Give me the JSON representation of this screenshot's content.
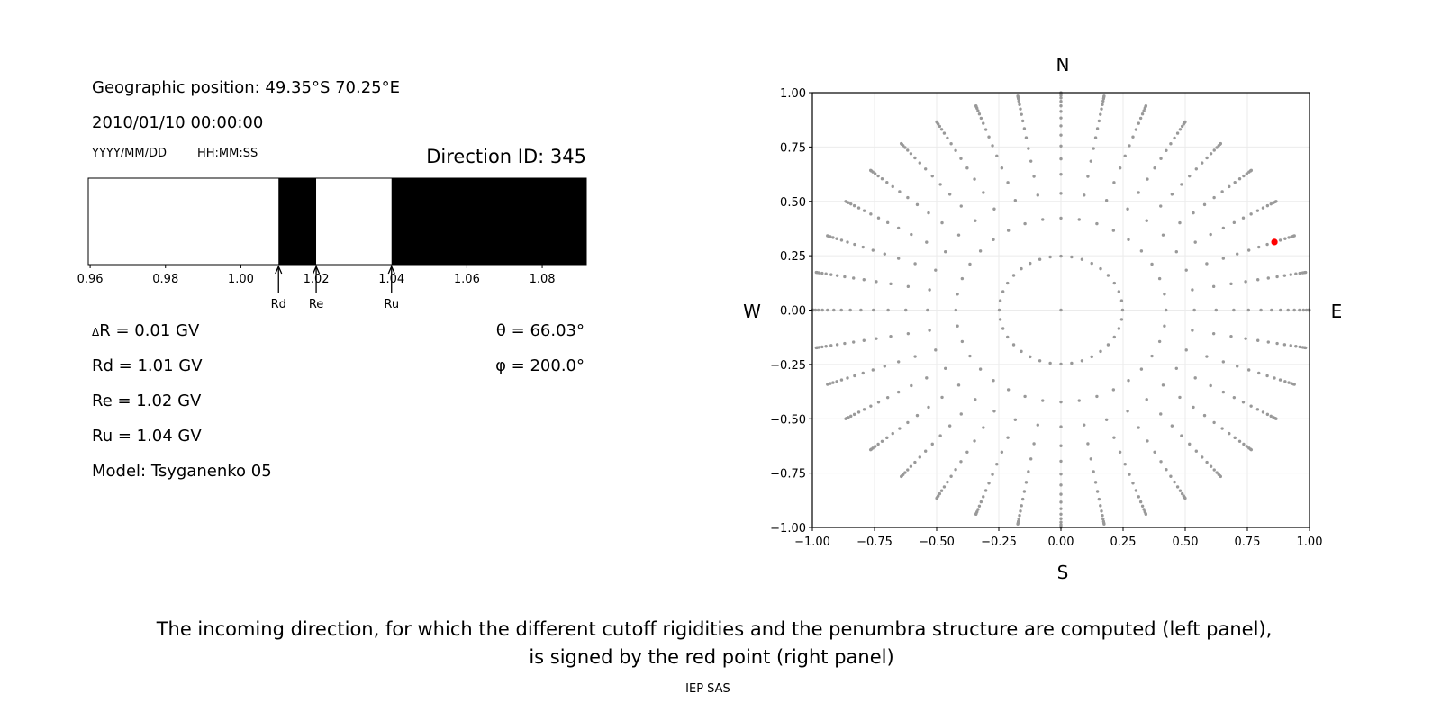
{
  "info": {
    "geo_position": "Geographic position: 49.35°S 70.25°E",
    "datetime": "2010/01/10 00:00:00",
    "date_format": "YYYY/MM/DD",
    "time_format": "HH:MM:SS",
    "direction_id": "Direction ID: 345",
    "delta_r_symbol": "Δ",
    "delta_r": "R = 0.01 GV",
    "rd": "Rd = 1.01 GV",
    "re": "Re = 1.02 GV",
    "ru": "Ru = 1.04 GV",
    "model": "Model: Tsyganenko 05",
    "theta": "θ = 66.03°",
    "phi": "φ = 200.0°"
  },
  "caption": {
    "line1": "The incoming direction, for which the different cutoff rigidities and the penumbra structure are computed (left panel),",
    "line2": "is signed by the red point (right panel)",
    "credit": "IEP SAS"
  },
  "chart_data": [
    {
      "type": "bar",
      "subtype": "penumbra-strip",
      "xlim": [
        0.9595,
        1.0917
      ],
      "xticks": [
        "0.96",
        "0.98",
        "1.00",
        "1.02",
        "1.04",
        "1.06",
        "1.08"
      ],
      "xtick_values": [
        0.96,
        0.98,
        1.0,
        1.02,
        1.04,
        1.06,
        1.08
      ],
      "segments": [
        {
          "from": 0.9595,
          "to": 1.01,
          "state": "forbidden",
          "color": "#ffffff"
        },
        {
          "from": 1.01,
          "to": 1.02,
          "state": "allowed",
          "color": "#000000"
        },
        {
          "from": 1.02,
          "to": 1.04,
          "state": "forbidden",
          "color": "#ffffff"
        },
        {
          "from": 1.04,
          "to": 1.0917,
          "state": "allowed",
          "color": "#000000"
        }
      ],
      "markers": [
        {
          "label": "Rd",
          "value": 1.01
        },
        {
          "label": "Re",
          "value": 1.02
        },
        {
          "label": "Ru",
          "value": 1.04
        }
      ]
    },
    {
      "type": "scatter",
      "xlim": [
        -1,
        1
      ],
      "ylim": [
        -1,
        1
      ],
      "grid": true,
      "xticks": [
        "−1.00",
        "−0.75",
        "−0.50",
        "−0.25",
        "0.00",
        "0.25",
        "0.50",
        "0.75",
        "1.00"
      ],
      "yticks": [
        "−1.00",
        "−0.75",
        "−0.50",
        "−0.25",
        "0.00",
        "0.25",
        "0.50",
        "0.75",
        "1.00"
      ],
      "tick_values": [
        -1,
        -0.75,
        -0.5,
        -0.25,
        0,
        0.25,
        0.5,
        0.75,
        1
      ],
      "compass": {
        "north": "N",
        "south": "S",
        "west": "W",
        "east": "E"
      },
      "directions_grid": {
        "azimuth_step_deg": 10,
        "zenith_rings": 16,
        "zenith_cos_rule": "cos(theta_k) = 1 - (k + 0.5) / 16",
        "center_point": true
      },
      "point_color": "#999999",
      "highlight": {
        "theta_deg": 66.03,
        "phi_deg": 200.0,
        "x": 0.859,
        "y": 0.313,
        "color": "#ff0000"
      }
    }
  ]
}
